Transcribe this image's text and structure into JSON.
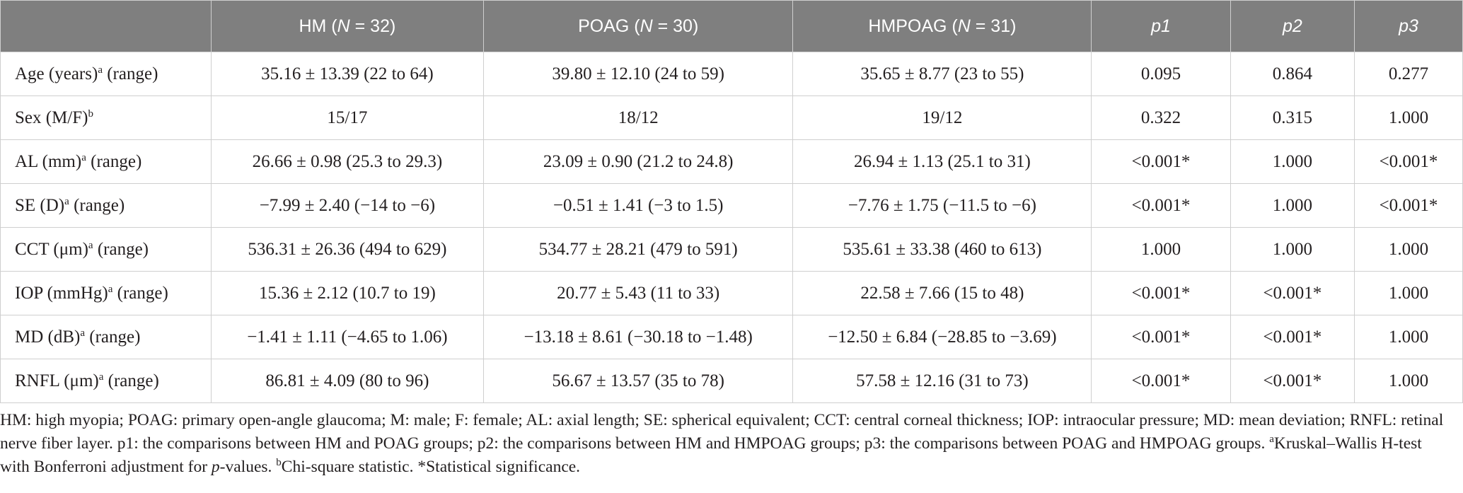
{
  "table": {
    "headers": [
      {
        "pre": "",
        "italic": "",
        "post": ""
      },
      {
        "pre": "HM (",
        "italic": "N",
        "post": " = 32)"
      },
      {
        "pre": "POAG (",
        "italic": "N",
        "post": " = 30)"
      },
      {
        "pre": "HMPOAG (",
        "italic": "N",
        "post": " = 31)"
      },
      {
        "pre": "",
        "italic": "p1",
        "post": ""
      },
      {
        "pre": "",
        "italic": "p2",
        "post": ""
      },
      {
        "pre": "",
        "italic": "p3",
        "post": ""
      }
    ],
    "rows": [
      {
        "label": "Age (years)",
        "sup": "a",
        "suffix": " (range)",
        "hm": "35.16 ± 13.39 (22 to 64)",
        "poag": "39.80 ± 12.10 (24 to 59)",
        "hmpoag": "35.65 ± 8.77 (23 to 55)",
        "p1": "0.095",
        "p2": "0.864",
        "p3": "0.277"
      },
      {
        "label": "Sex (M/F)",
        "sup": "b",
        "suffix": "",
        "hm": "15/17",
        "poag": "18/12",
        "hmpoag": "19/12",
        "p1": "0.322",
        "p2": "0.315",
        "p3": "1.000"
      },
      {
        "label": "AL (mm)",
        "sup": "a",
        "suffix": " (range)",
        "hm": "26.66 ± 0.98 (25.3 to 29.3)",
        "poag": "23.09 ± 0.90 (21.2 to 24.8)",
        "hmpoag": "26.94 ± 1.13 (25.1 to 31)",
        "p1": "<0.001*",
        "p2": "1.000",
        "p3": "<0.001*"
      },
      {
        "label": "SE (D)",
        "sup": "a",
        "suffix": " (range)",
        "hm": "−7.99 ± 2.40 (−14 to −6)",
        "poag": "−0.51 ± 1.41 (−3 to 1.5)",
        "hmpoag": "−7.76 ± 1.75 (−11.5 to −6)",
        "p1": "<0.001*",
        "p2": "1.000",
        "p3": "<0.001*"
      },
      {
        "label": "CCT (μm)",
        "sup": "a",
        "suffix": " (range)",
        "hm": "536.31 ± 26.36 (494 to 629)",
        "poag": "534.77 ± 28.21 (479 to 591)",
        "hmpoag": "535.61 ± 33.38 (460 to 613)",
        "p1": "1.000",
        "p2": "1.000",
        "p3": "1.000"
      },
      {
        "label": "IOP (mmHg)",
        "sup": "a",
        "suffix": " (range)",
        "hm": "15.36 ± 2.12 (10.7 to 19)",
        "poag": "20.77 ± 5.43 (11 to 33)",
        "hmpoag": "22.58 ± 7.66 (15 to 48)",
        "p1": "<0.001*",
        "p2": "<0.001*",
        "p3": "1.000"
      },
      {
        "label": "MD (dB)",
        "sup": "a",
        "suffix": " (range)",
        "hm": "−1.41 ± 1.11 (−4.65 to 1.06)",
        "poag": "−13.18 ± 8.61 (−30.18 to −1.48)",
        "hmpoag": "−12.50 ± 6.84 (−28.85 to −3.69)",
        "p1": "<0.001*",
        "p2": "<0.001*",
        "p3": "1.000"
      },
      {
        "label": "RNFL (μm)",
        "sup": "a",
        "suffix": " (range)",
        "hm": "86.81 ± 4.09 (80 to 96)",
        "poag": "56.67 ± 13.57 (35 to 78)",
        "hmpoag": "57.58 ± 12.16 (31 to 73)",
        "p1": "<0.001*",
        "p2": "<0.001*",
        "p3": "1.000"
      }
    ]
  },
  "footnote": {
    "main": "HM: high myopia; POAG: primary open-angle glaucoma; M: male; F: female; AL: axial length; SE: spherical equivalent; CCT: central corneal thickness; IOP: intraocular pressure; MD: mean deviation; RNFL: retinal nerve fiber layer. p1: the comparisons between HM and POAG groups; p2: the comparisons between HM and HMPOAG groups; p3: the comparisons between POAG and HMPOAG groups. ",
    "a_mark": "a",
    "a_text_pre": "Kruskal–Wallis H-test with Bonferroni adjustment for ",
    "a_text_italic": "p",
    "a_text_post": "-values. ",
    "b_mark": "b",
    "b_text": "Chi-square statistic. ",
    "star_text": "*Statistical significance."
  }
}
